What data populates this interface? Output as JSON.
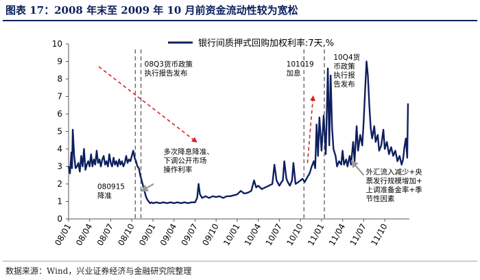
{
  "header": {
    "title": "图表 17：2008 年末至 2009 年 10 月前资金流动性较为宽松"
  },
  "footer": {
    "source": "数据来源：Wind，兴业证券经济与金融研究院整理"
  },
  "colors": {
    "series": "#0e1f5e",
    "arrow": "#d42323",
    "grey_arrow": "#9a9a9a",
    "title": "#0b1f5c"
  },
  "chart_data": {
    "type": "line",
    "title": "",
    "xlabel": "",
    "ylabel": "",
    "ylim": [
      0,
      10
    ],
    "y_ticks": [
      "0",
      "1",
      "2",
      "3",
      "4",
      "5",
      "6",
      "7",
      "8",
      "9",
      "10"
    ],
    "x_ticks": [
      "08/01",
      "08/04",
      "08/07",
      "08/10",
      "09/01",
      "09/04",
      "09/07",
      "09/10",
      "10/01",
      "10/04",
      "10/07",
      "10/10",
      "11/01",
      "11/04",
      "11/07",
      "11/10"
    ],
    "x_tick_months": [
      0,
      3,
      6,
      9,
      12,
      15,
      18,
      21,
      24,
      27,
      30,
      33,
      36,
      39,
      42,
      45
    ],
    "x_range_months": [
      0,
      48.5
    ],
    "grid": false,
    "legend": {
      "position": "top",
      "entries": [
        "银行间质押式回购加权利率:7天,%"
      ]
    },
    "series": [
      {
        "name": "银行间质押式回购加权利率:7天,%",
        "points": [
          [
            0.0,
            3.0
          ],
          [
            0.2,
            2.6
          ],
          [
            0.4,
            3.8
          ],
          [
            0.5,
            2.9
          ],
          [
            0.6,
            5.1
          ],
          [
            0.8,
            3.6
          ],
          [
            1.0,
            2.9
          ],
          [
            1.2,
            3.0
          ],
          [
            1.4,
            3.2
          ],
          [
            1.6,
            2.7
          ],
          [
            1.8,
            3.6
          ],
          [
            2.0,
            3.0
          ],
          [
            2.2,
            4.0
          ],
          [
            2.4,
            2.8
          ],
          [
            2.6,
            3.1
          ],
          [
            2.8,
            3.3
          ],
          [
            3.0,
            3.0
          ],
          [
            3.2,
            3.7
          ],
          [
            3.4,
            3.0
          ],
          [
            3.6,
            3.4
          ],
          [
            3.8,
            3.1
          ],
          [
            4.0,
            3.9
          ],
          [
            4.2,
            3.2
          ],
          [
            4.4,
            3.4
          ],
          [
            4.6,
            3.0
          ],
          [
            4.8,
            3.4
          ],
          [
            5.0,
            3.6
          ],
          [
            5.2,
            3.1
          ],
          [
            5.4,
            3.3
          ],
          [
            5.6,
            3.0
          ],
          [
            5.8,
            3.7
          ],
          [
            6.0,
            3.2
          ],
          [
            6.2,
            3.0
          ],
          [
            6.4,
            3.5
          ],
          [
            6.6,
            3.1
          ],
          [
            6.8,
            3.3
          ],
          [
            7.0,
            3.0
          ],
          [
            7.2,
            3.4
          ],
          [
            7.4,
            3.1
          ],
          [
            7.6,
            3.3
          ],
          [
            7.8,
            3.0
          ],
          [
            8.0,
            3.2
          ],
          [
            8.2,
            3.6
          ],
          [
            8.4,
            3.2
          ],
          [
            8.6,
            3.4
          ],
          [
            8.8,
            3.3
          ],
          [
            9.0,
            3.6
          ],
          [
            9.2,
            3.9
          ],
          [
            9.4,
            3.5
          ],
          [
            9.6,
            3.3
          ],
          [
            9.8,
            3.0
          ],
          [
            10.0,
            2.9
          ],
          [
            10.2,
            2.5
          ],
          [
            10.4,
            2.2
          ],
          [
            10.6,
            1.9
          ],
          [
            10.8,
            1.6
          ],
          [
            11.0,
            1.3
          ],
          [
            11.2,
            1.1
          ],
          [
            11.4,
            1.0
          ],
          [
            11.6,
            0.9
          ],
          [
            11.8,
            0.95
          ],
          [
            12.0,
            0.9
          ],
          [
            12.5,
            0.95
          ],
          [
            13.0,
            0.9
          ],
          [
            13.5,
            0.95
          ],
          [
            14.0,
            0.9
          ],
          [
            14.5,
            0.95
          ],
          [
            15.0,
            0.9
          ],
          [
            15.5,
            0.95
          ],
          [
            16.0,
            0.9
          ],
          [
            16.5,
            0.95
          ],
          [
            17.0,
            0.9
          ],
          [
            17.5,
            0.95
          ],
          [
            18.0,
            0.95
          ],
          [
            18.3,
            1.2
          ],
          [
            18.5,
            2.0
          ],
          [
            18.7,
            1.4
          ],
          [
            19.0,
            1.2
          ],
          [
            19.5,
            1.3
          ],
          [
            20.0,
            1.2
          ],
          [
            20.5,
            1.3
          ],
          [
            21.0,
            1.25
          ],
          [
            21.5,
            1.3
          ],
          [
            22.0,
            1.2
          ],
          [
            22.5,
            1.3
          ],
          [
            23.0,
            1.3
          ],
          [
            23.5,
            1.35
          ],
          [
            24.0,
            1.4
          ],
          [
            24.5,
            1.6
          ],
          [
            25.0,
            1.45
          ],
          [
            25.5,
            1.5
          ],
          [
            26.0,
            1.6
          ],
          [
            26.4,
            2.2
          ],
          [
            26.7,
            1.8
          ],
          [
            27.0,
            1.9
          ],
          [
            27.5,
            1.7
          ],
          [
            28.0,
            1.8
          ],
          [
            28.5,
            1.9
          ],
          [
            29.0,
            2.0
          ],
          [
            29.3,
            3.1
          ],
          [
            29.6,
            2.2
          ],
          [
            30.0,
            1.9
          ],
          [
            30.3,
            2.1
          ],
          [
            30.5,
            2.2
          ],
          [
            30.7,
            3.3
          ],
          [
            31.0,
            2.3
          ],
          [
            31.2,
            2.1
          ],
          [
            31.5,
            1.9
          ],
          [
            31.8,
            2.2
          ],
          [
            32.0,
            3.2
          ],
          [
            32.3,
            2.0
          ],
          [
            32.7,
            2.1
          ],
          [
            33.0,
            2.2
          ],
          [
            33.3,
            2.3
          ],
          [
            33.6,
            2.1
          ],
          [
            34.0,
            2.4
          ],
          [
            34.3,
            2.6
          ],
          [
            34.6,
            3.0
          ],
          [
            34.9,
            3.3
          ],
          [
            35.1,
            2.9
          ],
          [
            35.3,
            5.4
          ],
          [
            35.5,
            3.6
          ],
          [
            35.7,
            5.8
          ],
          [
            36.0,
            3.9
          ],
          [
            36.3,
            5.9
          ],
          [
            36.6,
            3.7
          ],
          [
            36.9,
            8.6
          ],
          [
            37.1,
            4.2
          ],
          [
            37.3,
            8.2
          ],
          [
            37.5,
            5.2
          ],
          [
            37.7,
            4.0
          ],
          [
            38.0,
            3.6
          ],
          [
            38.2,
            3.0
          ],
          [
            38.5,
            3.3
          ],
          [
            38.8,
            3.1
          ],
          [
            39.0,
            3.9
          ],
          [
            39.2,
            3.1
          ],
          [
            39.5,
            3.4
          ],
          [
            39.7,
            3.0
          ],
          [
            40.0,
            3.6
          ],
          [
            40.2,
            3.1
          ],
          [
            40.5,
            4.4
          ],
          [
            40.7,
            3.3
          ],
          [
            41.0,
            5.3
          ],
          [
            41.2,
            3.9
          ],
          [
            41.5,
            4.8
          ],
          [
            41.8,
            4.2
          ],
          [
            42.0,
            5.6
          ],
          [
            42.2,
            7.3
          ],
          [
            42.4,
            9.0
          ],
          [
            42.6,
            8.2
          ],
          [
            42.8,
            6.5
          ],
          [
            43.0,
            5.2
          ],
          [
            43.2,
            4.6
          ],
          [
            43.5,
            5.3
          ],
          [
            43.7,
            4.4
          ],
          [
            44.0,
            4.8
          ],
          [
            44.2,
            3.9
          ],
          [
            44.5,
            4.2
          ],
          [
            44.8,
            5.1
          ],
          [
            45.0,
            4.0
          ],
          [
            45.3,
            4.4
          ],
          [
            45.6,
            3.7
          ],
          [
            45.9,
            4.1
          ],
          [
            46.2,
            3.6
          ],
          [
            46.5,
            3.9
          ],
          [
            46.8,
            3.3
          ],
          [
            47.1,
            3.6
          ],
          [
            47.4,
            3.1
          ],
          [
            47.6,
            3.4
          ],
          [
            47.8,
            4.1
          ],
          [
            48.0,
            4.6
          ],
          [
            48.2,
            3.5
          ],
          [
            48.3,
            6.6
          ]
        ]
      }
    ],
    "vertical_dashed_lines_months": [
      9.5,
      10.3,
      33.5,
      36.4
    ],
    "annotations": [
      {
        "text": "080915\n降准",
        "anchor": [
          9.5,
          2.0
        ],
        "label": [
          4.1,
          1.7
        ]
      },
      {
        "text": "08Q3货币政策\n执行报告发布",
        "label": [
          10.8,
          8.7
        ]
      },
      {
        "text": "多次降息降准、\n下调公开市场\n操作利率",
        "label": [
          13.5,
          3.7
        ]
      },
      {
        "text": "101019\n加息",
        "label": [
          31.0,
          8.7
        ]
      },
      {
        "text": "10Q4货\n币政策\n执行报\n告发布",
        "label": [
          37.7,
          9.1
        ]
      },
      {
        "text": "外汇流入减少+央\n票发行规模增加+\n上调准备金率+季\n节性因素",
        "label": [
          42.3,
          2.55
        ]
      }
    ],
    "trend_arrows": [
      {
        "from": [
          4.3,
          8.7
        ],
        "to": [
          18.2,
          4.4
        ],
        "style": "red-dashed"
      },
      {
        "from": [
          34.0,
          3.2
        ],
        "to": [
          34.8,
          7.0
        ],
        "style": "red-dashed"
      },
      {
        "from": [
          12.1,
          2.0
        ],
        "to": [
          10.4,
          1.6
        ],
        "style": "grey"
      },
      {
        "from": [
          42.0,
          2.5
        ],
        "to": [
          40.3,
          3.3
        ],
        "style": "grey"
      }
    ]
  }
}
